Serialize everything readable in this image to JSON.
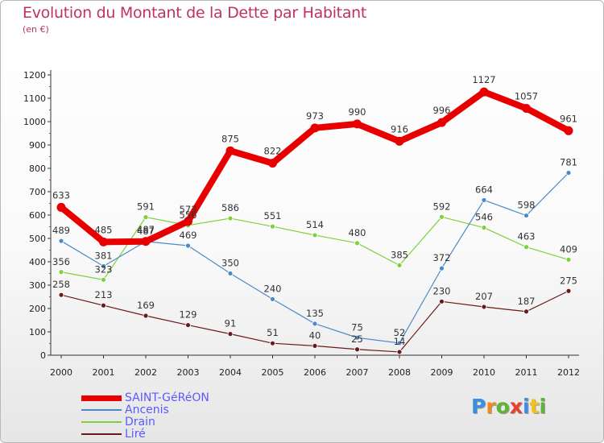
{
  "title": "Evolution du Montant de la Dette par Habitant",
  "subtitle": "(en €)",
  "logo": {
    "text": "Proxiti",
    "letter_colors": [
      "#3d8ee0",
      "#f08a1e",
      "#5fb536",
      "#e8402c",
      "#3d8ee0",
      "#f0c21e",
      "#5fb536"
    ]
  },
  "chart_data": {
    "type": "line",
    "title": "Evolution du Montant de la Dette par Habitant",
    "subtitle": "(en €)",
    "x": [
      "2000",
      "2001",
      "2002",
      "2003",
      "2004",
      "2005",
      "2006",
      "2007",
      "2008",
      "2009",
      "2010",
      "2011",
      "2012"
    ],
    "ylim": [
      0,
      1200
    ],
    "yticks": [
      0,
      100,
      200,
      300,
      400,
      500,
      600,
      700,
      800,
      900,
      1000,
      1100,
      1200
    ],
    "grid": false,
    "legend_position": "bottom-left",
    "series": [
      {
        "name": "SAINT-GéRéON",
        "color": "#e80000",
        "values": [
          633,
          485,
          487,
          573,
          875,
          822,
          973,
          990,
          916,
          996,
          1127,
          1057,
          961
        ]
      },
      {
        "name": "Ancenis",
        "color": "#4c8ac7",
        "values": [
          489,
          381,
          487,
          469,
          350,
          240,
          135,
          75,
          52,
          372,
          664,
          598,
          781
        ]
      },
      {
        "name": "Drain",
        "color": "#7fd13b",
        "values": [
          356,
          323,
          591,
          556,
          586,
          551,
          514,
          480,
          385,
          592,
          546,
          463,
          409
        ]
      },
      {
        "name": "Liré",
        "color": "#6b1a1a",
        "values": [
          258,
          213,
          169,
          129,
          91,
          51,
          40,
          25,
          14,
          230,
          207,
          187,
          275
        ]
      }
    ]
  }
}
